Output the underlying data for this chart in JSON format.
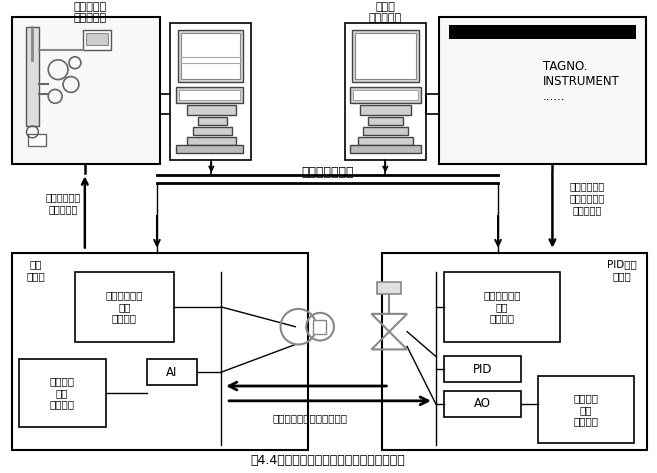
{
  "fig_width": 6.57,
  "fig_height": 4.73,
  "dpi": 100,
  "bg_color": "#ffffff",
  "caption": "図4.4　フィールドバス上のいろいろな通信",
  "fieldbus_label": "フィールドバス",
  "operator_console_label": "オペレータ\nコンソール",
  "maintenance_console_label": "保守用\nコンソール",
  "left_device_label": "流量\n伝送器",
  "right_device_label": "PID付き\n調節弁",
  "hw_block_label": "ハードウェア\n情報\nブロック",
  "hw_block_label2": "ハードウェア\n情報\nブロック",
  "input_block_label": "入力信号\n変換\nブロック",
  "input_block_label2": "入力信号\n変換\nブロック",
  "ai_label": "AI",
  "pid_label": "PID",
  "ao_label": "AO",
  "monitor_comm_label": "監視・操作の\nための通信",
  "field_mgmt_comm_label": "フィールドの\n管理・保全の\nための通信",
  "periodic_comm_label": "分散制御のための周期通信",
  "tagno_text": "TAGNO.\nINSTRUMENT\n......",
  "text_color": "#000000"
}
